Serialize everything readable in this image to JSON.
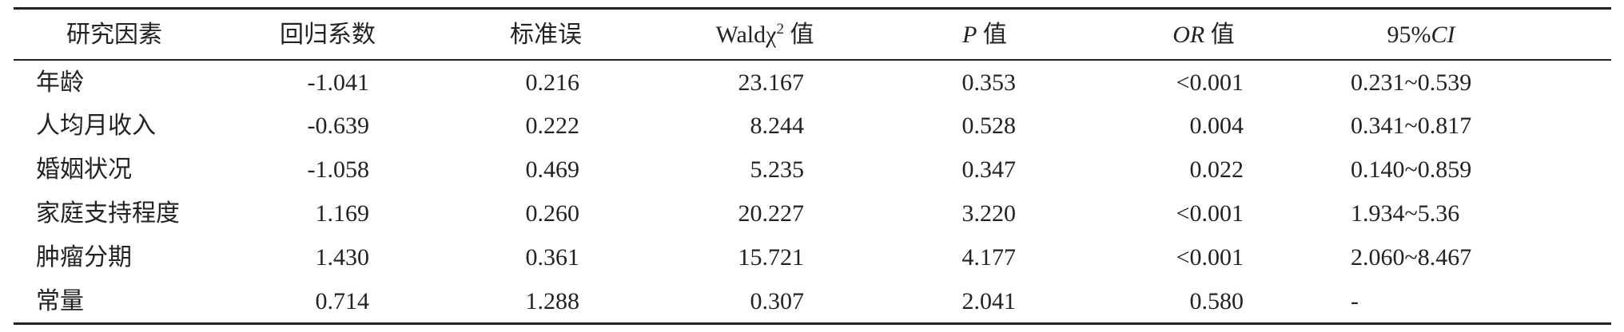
{
  "table": {
    "header": [
      [
        {
          "text": "研究因素"
        }
      ],
      [
        {
          "text": "回归系数"
        }
      ],
      [
        {
          "text": "标准误"
        }
      ],
      [
        {
          "text": "Waldχ"
        },
        {
          "text": "2",
          "sup": true
        },
        {
          "text": " 值"
        }
      ],
      [
        {
          "text": "P",
          "italic": true
        },
        {
          "text": " 值"
        }
      ],
      [
        {
          "text": "OR",
          "italic": true
        },
        {
          "text": " 值"
        }
      ],
      [
        {
          "text": "95%"
        },
        {
          "text": "CI",
          "italic": true
        }
      ]
    ],
    "rows": [
      [
        "年龄",
        "-1.041",
        "0.216",
        "23.167",
        "0.353",
        "<0.001",
        "0.231~0.539"
      ],
      [
        "人均月收入",
        "-0.639",
        "0.222",
        "8.244",
        "0.528",
        "0.004",
        "0.341~0.817"
      ],
      [
        "婚姻状况",
        "-1.058",
        "0.469",
        "5.235",
        "0.347",
        "0.022",
        "0.140~0.859"
      ],
      [
        "家庭支持程度",
        "1.169",
        "0.260",
        "20.227",
        "3.220",
        "<0.001",
        "1.934~5.36"
      ],
      [
        "肿瘤分期",
        "1.430",
        "0.361",
        "15.721",
        "4.177",
        "<0.001",
        "2.060~8.467"
      ],
      [
        "常量",
        "0.714",
        "1.288",
        "0.307",
        "2.041",
        "0.580",
        "-"
      ]
    ]
  }
}
